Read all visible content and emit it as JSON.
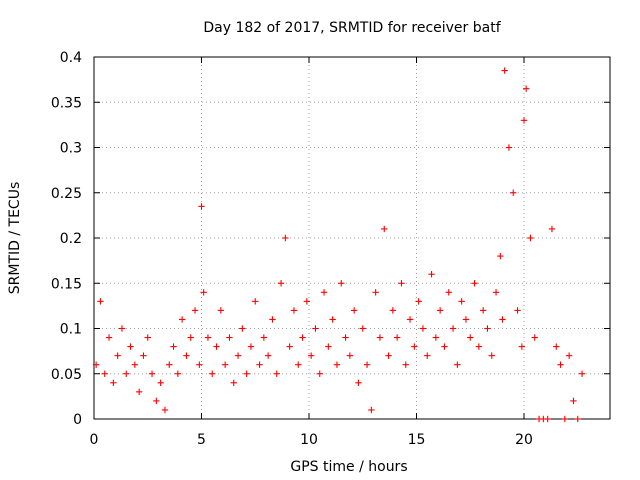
{
  "chart_data": {
    "type": "scatter",
    "title": "Day 182 of 2017, SRMTID for receiver batf",
    "xlabel": "GPS time / hours",
    "ylabel": "SRMTID / TECUs",
    "xlim": [
      0,
      24
    ],
    "ylim": [
      0,
      0.4
    ],
    "xticks": [
      0,
      5,
      10,
      15,
      20
    ],
    "xtick_labels": [
      "0",
      "5",
      "10",
      "15",
      "20"
    ],
    "yticks": [
      0,
      0.05,
      0.1,
      0.15,
      0.2,
      0.25,
      0.3,
      0.35,
      0.4
    ],
    "ytick_labels": [
      "0",
      "0.05",
      "0.1",
      "0.15",
      "0.2",
      "0.25",
      "0.3",
      "0.35",
      "0.4"
    ],
    "grid": true,
    "legend": "none",
    "marker": "plus",
    "series_color": "#ff0000",
    "series": [
      {
        "name": "SRMTID",
        "x": [
          0.1,
          0.3,
          0.5,
          0.7,
          0.9,
          1.1,
          1.3,
          1.5,
          1.7,
          1.9,
          2.1,
          2.3,
          2.5,
          2.7,
          2.9,
          3.1,
          3.3,
          3.5,
          3.7,
          3.9,
          4.1,
          4.3,
          4.5,
          4.7,
          4.9,
          5.0,
          5.1,
          5.3,
          5.5,
          5.7,
          5.9,
          6.1,
          6.3,
          6.5,
          6.7,
          6.9,
          7.1,
          7.3,
          7.5,
          7.7,
          7.9,
          8.1,
          8.3,
          8.5,
          8.7,
          8.9,
          9.1,
          9.3,
          9.5,
          9.7,
          9.9,
          10.1,
          10.3,
          10.5,
          10.7,
          10.9,
          11.1,
          11.3,
          11.5,
          11.7,
          11.9,
          12.1,
          12.3,
          12.5,
          12.7,
          12.9,
          13.1,
          13.3,
          13.5,
          13.7,
          13.9,
          14.1,
          14.3,
          14.5,
          14.7,
          14.9,
          15.1,
          15.3,
          15.5,
          15.7,
          15.9,
          16.1,
          16.3,
          16.5,
          16.7,
          16.9,
          17.1,
          17.3,
          17.5,
          17.7,
          17.9,
          18.1,
          18.3,
          18.5,
          18.7,
          18.9,
          19.0,
          19.1,
          19.3,
          19.5,
          19.7,
          19.9,
          20.0,
          20.1,
          20.3,
          20.5,
          20.7,
          20.9,
          21.1,
          21.3,
          21.5,
          21.7,
          21.9,
          22.1,
          22.3,
          22.5,
          22.7
        ],
        "y": [
          0.06,
          0.13,
          0.05,
          0.09,
          0.04,
          0.07,
          0.1,
          0.05,
          0.08,
          0.06,
          0.03,
          0.07,
          0.09,
          0.05,
          0.02,
          0.04,
          0.01,
          0.06,
          0.08,
          0.05,
          0.11,
          0.07,
          0.09,
          0.12,
          0.06,
          0.235,
          0.14,
          0.09,
          0.05,
          0.08,
          0.12,
          0.06,
          0.09,
          0.04,
          0.07,
          0.1,
          0.05,
          0.08,
          0.13,
          0.06,
          0.09,
          0.07,
          0.11,
          0.05,
          0.15,
          0.2,
          0.08,
          0.12,
          0.06,
          0.09,
          0.13,
          0.07,
          0.1,
          0.05,
          0.14,
          0.08,
          0.11,
          0.06,
          0.15,
          0.09,
          0.07,
          0.12,
          0.04,
          0.1,
          0.06,
          0.01,
          0.14,
          0.09,
          0.21,
          0.07,
          0.12,
          0.09,
          0.15,
          0.06,
          0.11,
          0.08,
          0.13,
          0.1,
          0.07,
          0.16,
          0.09,
          0.12,
          0.08,
          0.14,
          0.1,
          0.06,
          0.13,
          0.11,
          0.09,
          0.15,
          0.08,
          0.12,
          0.1,
          0.07,
          0.14,
          0.18,
          0.11,
          0.385,
          0.3,
          0.25,
          0.12,
          0.08,
          0.33,
          0.365,
          0.2,
          0.09,
          0.0,
          0.0,
          0.0,
          0.21,
          0.08,
          0.06,
          0.0,
          0.07,
          0.02,
          0.0,
          0.05
        ]
      }
    ]
  }
}
